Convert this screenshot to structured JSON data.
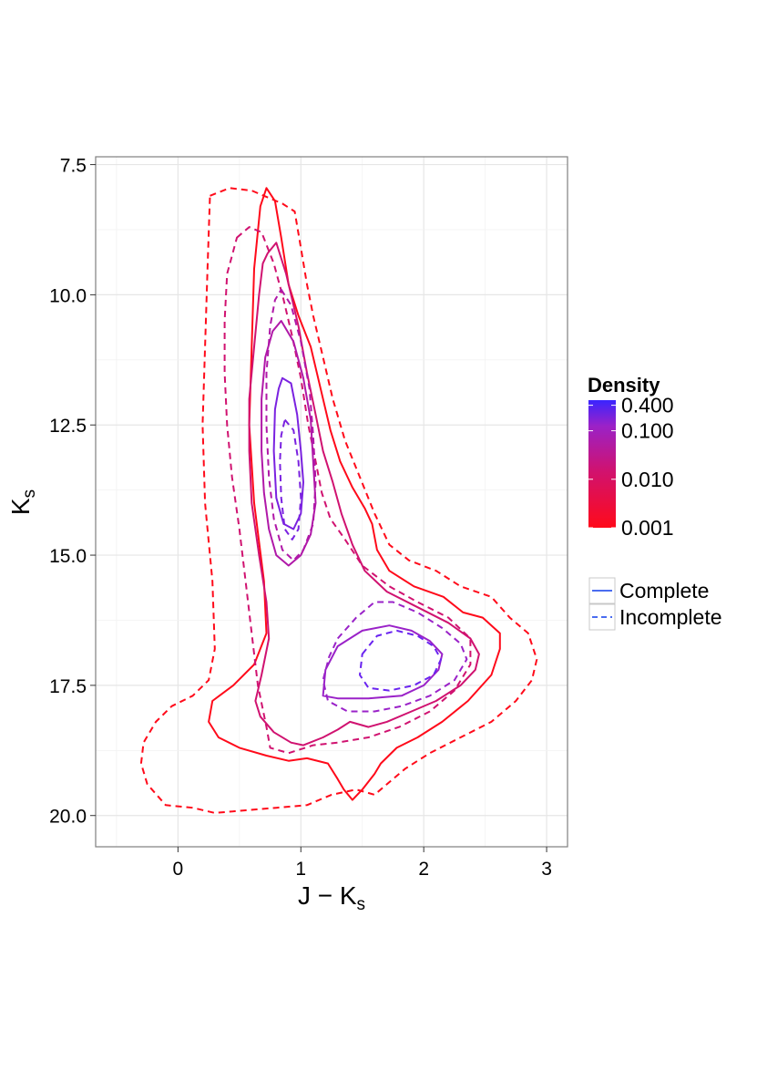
{
  "chart_data": {
    "type": "contour",
    "xlabel": {
      "main": "J − K",
      "sub": "s"
    },
    "ylabel": {
      "main": "K",
      "sub": "s"
    },
    "xlim": [
      -0.67,
      3.17
    ],
    "ylim": [
      20.6,
      7.35
    ],
    "y_reversed": true,
    "grid": true,
    "x_ticks": [
      0,
      1,
      2,
      3
    ],
    "x_tick_labels": [
      "0",
      "1",
      "2",
      "3"
    ],
    "y_ticks": [
      7.5,
      10.0,
      12.5,
      15.0,
      17.5,
      20.0
    ],
    "y_tick_labels": [
      "7.5",
      "10.0",
      "12.5",
      "15.0",
      "17.5",
      "20.0"
    ],
    "colors": {
      "low": "#ff0a1a",
      "mid": "#d01270",
      "high": "#9a22c8",
      "top": "#3a24ff",
      "legend_line": "#4a6cf0"
    },
    "density_legend": {
      "title": "Density",
      "ticks": [
        {
          "label": "0.400",
          "position": 0.96
        },
        {
          "label": "0.100",
          "position": 0.76
        },
        {
          "label": "0.010",
          "position": 0.38
        },
        {
          "label": "0.001",
          "position": 0.0
        }
      ]
    },
    "linetype_legend": {
      "items": [
        {
          "label": "Complete",
          "dash": "solid"
        },
        {
          "label": "Incomplete",
          "dash": "dashed"
        }
      ]
    },
    "series": [
      {
        "sample": "Complete",
        "level": 0.001,
        "color": "#ff0a1a",
        "dash": "solid",
        "points": [
          [
            0.72,
            7.95
          ],
          [
            0.79,
            8.2
          ],
          [
            0.84,
            8.9
          ],
          [
            0.9,
            9.8
          ],
          [
            0.98,
            10.4
          ],
          [
            1.08,
            11.0
          ],
          [
            1.16,
            11.8
          ],
          [
            1.24,
            12.6
          ],
          [
            1.32,
            13.2
          ],
          [
            1.42,
            13.7
          ],
          [
            1.52,
            14.1
          ],
          [
            1.58,
            14.4
          ],
          [
            1.62,
            14.9
          ],
          [
            1.72,
            15.3
          ],
          [
            1.92,
            15.6
          ],
          [
            2.16,
            15.8
          ],
          [
            2.32,
            16.1
          ],
          [
            2.48,
            16.2
          ],
          [
            2.62,
            16.5
          ],
          [
            2.62,
            16.8
          ],
          [
            2.55,
            17.3
          ],
          [
            2.36,
            17.8
          ],
          [
            2.15,
            18.2
          ],
          [
            1.95,
            18.5
          ],
          [
            1.78,
            18.7
          ],
          [
            1.65,
            19.0
          ],
          [
            1.6,
            19.2
          ],
          [
            1.5,
            19.5
          ],
          [
            1.42,
            19.7
          ],
          [
            1.35,
            19.5
          ],
          [
            1.3,
            19.3
          ],
          [
            1.22,
            19.0
          ],
          [
            1.05,
            18.9
          ],
          [
            0.9,
            18.95
          ],
          [
            0.72,
            18.85
          ],
          [
            0.5,
            18.7
          ],
          [
            0.33,
            18.5
          ],
          [
            0.25,
            18.2
          ],
          [
            0.28,
            17.8
          ],
          [
            0.45,
            17.5
          ],
          [
            0.62,
            17.1
          ],
          [
            0.72,
            16.5
          ],
          [
            0.7,
            15.5
          ],
          [
            0.62,
            14.0
          ],
          [
            0.58,
            12.5
          ],
          [
            0.6,
            11.0
          ],
          [
            0.62,
            9.5
          ],
          [
            0.67,
            8.3
          ]
        ]
      },
      {
        "sample": "Incomplete",
        "level": 0.001,
        "color": "#ff0a1a",
        "dash": "dashed",
        "points": [
          [
            0.26,
            8.1
          ],
          [
            0.42,
            7.95
          ],
          [
            0.6,
            8.0
          ],
          [
            0.85,
            8.25
          ],
          [
            0.95,
            8.4
          ],
          [
            1.0,
            9.1
          ],
          [
            1.05,
            9.8
          ],
          [
            1.1,
            10.4
          ],
          [
            1.18,
            11.2
          ],
          [
            1.26,
            12.0
          ],
          [
            1.36,
            12.8
          ],
          [
            1.48,
            13.5
          ],
          [
            1.6,
            14.2
          ],
          [
            1.72,
            14.8
          ],
          [
            1.88,
            15.1
          ],
          [
            2.1,
            15.3
          ],
          [
            2.3,
            15.6
          ],
          [
            2.55,
            15.8
          ],
          [
            2.7,
            16.2
          ],
          [
            2.85,
            16.5
          ],
          [
            2.92,
            17.0
          ],
          [
            2.88,
            17.4
          ],
          [
            2.75,
            17.8
          ],
          [
            2.55,
            18.2
          ],
          [
            2.3,
            18.5
          ],
          [
            2.05,
            18.8
          ],
          [
            1.85,
            19.1
          ],
          [
            1.7,
            19.4
          ],
          [
            1.6,
            19.6
          ],
          [
            1.45,
            19.5
          ],
          [
            1.25,
            19.6
          ],
          [
            1.05,
            19.8
          ],
          [
            0.8,
            19.85
          ],
          [
            0.55,
            19.9
          ],
          [
            0.3,
            19.95
          ],
          [
            0.12,
            19.85
          ],
          [
            -0.1,
            19.8
          ],
          [
            -0.25,
            19.4
          ],
          [
            -0.3,
            19.0
          ],
          [
            -0.28,
            18.6
          ],
          [
            -0.18,
            18.2
          ],
          [
            -0.05,
            17.9
          ],
          [
            0.12,
            17.7
          ],
          [
            0.25,
            17.4
          ],
          [
            0.3,
            16.8
          ],
          [
            0.28,
            15.5
          ],
          [
            0.22,
            14.0
          ],
          [
            0.2,
            12.5
          ],
          [
            0.22,
            11.0
          ],
          [
            0.24,
            9.5
          ]
        ]
      },
      {
        "sample": "Complete",
        "level": 0.01,
        "color": "#d01270",
        "dash": "solid",
        "points": [
          [
            0.73,
            9.2
          ],
          [
            0.8,
            9.0
          ],
          [
            0.88,
            9.6
          ],
          [
            0.98,
            10.6
          ],
          [
            1.05,
            11.5
          ],
          [
            1.12,
            12.3
          ],
          [
            1.18,
            13.0
          ],
          [
            1.26,
            13.6
          ],
          [
            1.33,
            14.2
          ],
          [
            1.42,
            14.8
          ],
          [
            1.52,
            15.3
          ],
          [
            1.7,
            15.7
          ],
          [
            1.95,
            16.0
          ],
          [
            2.2,
            16.3
          ],
          [
            2.38,
            16.6
          ],
          [
            2.45,
            16.9
          ],
          [
            2.42,
            17.2
          ],
          [
            2.3,
            17.5
          ],
          [
            2.1,
            17.8
          ],
          [
            1.9,
            18.0
          ],
          [
            1.7,
            18.2
          ],
          [
            1.55,
            18.3
          ],
          [
            1.4,
            18.2
          ],
          [
            1.3,
            18.35
          ],
          [
            1.18,
            18.5
          ],
          [
            1.02,
            18.65
          ],
          [
            0.92,
            18.6
          ],
          [
            0.78,
            18.4
          ],
          [
            0.67,
            18.1
          ],
          [
            0.63,
            17.8
          ],
          [
            0.68,
            17.3
          ],
          [
            0.74,
            16.6
          ],
          [
            0.72,
            15.9
          ],
          [
            0.66,
            15.0
          ],
          [
            0.6,
            14.0
          ],
          [
            0.58,
            13.0
          ],
          [
            0.58,
            12.0
          ],
          [
            0.62,
            11.0
          ],
          [
            0.66,
            10.0
          ],
          [
            0.69,
            9.4
          ]
        ]
      },
      {
        "sample": "Incomplete",
        "level": 0.01,
        "color": "#d01270",
        "dash": "dashed",
        "points": [
          [
            0.48,
            8.9
          ],
          [
            0.58,
            8.7
          ],
          [
            0.68,
            8.8
          ],
          [
            0.78,
            9.4
          ],
          [
            0.86,
            10.1
          ],
          [
            0.93,
            10.8
          ],
          [
            1.0,
            11.6
          ],
          [
            1.06,
            12.5
          ],
          [
            1.12,
            13.2
          ],
          [
            1.17,
            13.8
          ],
          [
            1.24,
            14.3
          ],
          [
            1.36,
            14.7
          ],
          [
            1.5,
            15.2
          ],
          [
            1.72,
            15.6
          ],
          [
            1.95,
            15.9
          ],
          [
            2.2,
            16.2
          ],
          [
            2.38,
            16.6
          ],
          [
            2.38,
            17.1
          ],
          [
            2.25,
            17.6
          ],
          [
            2.05,
            18.0
          ],
          [
            1.8,
            18.3
          ],
          [
            1.55,
            18.5
          ],
          [
            1.3,
            18.6
          ],
          [
            1.1,
            18.65
          ],
          [
            0.9,
            18.8
          ],
          [
            0.75,
            18.7
          ],
          [
            0.72,
            18.3
          ],
          [
            0.65,
            17.5
          ],
          [
            0.6,
            16.5
          ],
          [
            0.55,
            15.5
          ],
          [
            0.5,
            14.5
          ],
          [
            0.44,
            13.5
          ],
          [
            0.4,
            12.5
          ],
          [
            0.38,
            11.5
          ],
          [
            0.38,
            10.5
          ],
          [
            0.4,
            9.6
          ]
        ]
      },
      {
        "sample": "Complete",
        "level": 0.1,
        "color": "#b018a8",
        "dash": "solid",
        "points": [
          [
            0.84,
            10.5
          ],
          [
            0.94,
            10.9
          ],
          [
            1.02,
            11.6
          ],
          [
            1.08,
            12.4
          ],
          [
            1.1,
            13.2
          ],
          [
            1.12,
            14.0
          ],
          [
            1.08,
            14.6
          ],
          [
            1.0,
            15.0
          ],
          [
            0.9,
            15.2
          ],
          [
            0.8,
            15.0
          ],
          [
            0.74,
            14.5
          ],
          [
            0.7,
            13.8
          ],
          [
            0.68,
            13.0
          ],
          [
            0.68,
            12.0
          ],
          [
            0.71,
            11.2
          ],
          [
            0.77,
            10.7
          ]
        ]
      },
      {
        "sample": "Incomplete",
        "level": 0.1,
        "color": "#b018a8",
        "dash": "dashed",
        "points": [
          [
            0.84,
            9.9
          ],
          [
            0.92,
            10.2
          ],
          [
            1.0,
            10.9
          ],
          [
            1.07,
            11.8
          ],
          [
            1.1,
            12.7
          ],
          [
            1.12,
            13.6
          ],
          [
            1.1,
            14.4
          ],
          [
            1.02,
            14.9
          ],
          [
            0.94,
            15.1
          ],
          [
            0.85,
            14.9
          ],
          [
            0.78,
            14.3
          ],
          [
            0.74,
            13.5
          ],
          [
            0.72,
            12.5
          ],
          [
            0.72,
            11.5
          ],
          [
            0.75,
            10.6
          ],
          [
            0.79,
            10.1
          ]
        ]
      },
      {
        "sample": "Complete",
        "level": 0.1,
        "color": "#9a22c8",
        "dash": "solid",
        "points": [
          [
            1.18,
            17.7
          ],
          [
            1.2,
            17.2
          ],
          [
            1.3,
            16.75
          ],
          [
            1.5,
            16.45
          ],
          [
            1.72,
            16.35
          ],
          [
            1.9,
            16.45
          ],
          [
            2.05,
            16.65
          ],
          [
            2.15,
            16.9
          ],
          [
            2.12,
            17.2
          ],
          [
            2.0,
            17.5
          ],
          [
            1.82,
            17.7
          ],
          [
            1.55,
            17.75
          ],
          [
            1.3,
            17.75
          ]
        ]
      },
      {
        "sample": "Incomplete",
        "level": 0.1,
        "color": "#9a22c8",
        "dash": "dashed",
        "points": [
          [
            1.3,
            16.6
          ],
          [
            1.45,
            16.2
          ],
          [
            1.6,
            15.9
          ],
          [
            1.75,
            15.9
          ],
          [
            1.95,
            16.1
          ],
          [
            2.15,
            16.4
          ],
          [
            2.3,
            16.7
          ],
          [
            2.35,
            17.0
          ],
          [
            2.25,
            17.4
          ],
          [
            2.05,
            17.7
          ],
          [
            1.82,
            17.9
          ],
          [
            1.6,
            18.0
          ],
          [
            1.38,
            18.0
          ],
          [
            1.22,
            17.8
          ],
          [
            1.18,
            17.4
          ],
          [
            1.23,
            16.95
          ]
        ]
      },
      {
        "sample": "Complete",
        "level": 0.4,
        "color": "#7a22e0",
        "dash": "solid",
        "points": [
          [
            0.85,
            11.6
          ],
          [
            0.92,
            11.7
          ],
          [
            0.97,
            12.3
          ],
          [
            1.0,
            13.0
          ],
          [
            1.02,
            13.6
          ],
          [
            1.0,
            14.2
          ],
          [
            0.94,
            14.5
          ],
          [
            0.86,
            14.4
          ],
          [
            0.8,
            13.9
          ],
          [
            0.78,
            13.0
          ],
          [
            0.79,
            12.2
          ],
          [
            0.82,
            11.8
          ]
        ]
      },
      {
        "sample": "Incomplete",
        "level": 0.4,
        "color": "#7a22e0",
        "dash": "dashed",
        "points": [
          [
            0.87,
            12.4
          ],
          [
            0.94,
            12.6
          ],
          [
            0.98,
            13.2
          ],
          [
            1.0,
            13.9
          ],
          [
            0.98,
            14.5
          ],
          [
            0.93,
            14.7
          ],
          [
            0.87,
            14.5
          ],
          [
            0.84,
            13.9
          ],
          [
            0.83,
            13.2
          ],
          [
            0.84,
            12.7
          ]
        ]
      },
      {
        "sample": "Incomplete",
        "level": 0.4,
        "color": "#6a24f0",
        "dash": "dashed",
        "points": [
          [
            1.5,
            16.9
          ],
          [
            1.62,
            16.55
          ],
          [
            1.78,
            16.45
          ],
          [
            1.95,
            16.55
          ],
          [
            2.08,
            16.75
          ],
          [
            2.14,
            17.0
          ],
          [
            2.08,
            17.3
          ],
          [
            1.92,
            17.5
          ],
          [
            1.72,
            17.6
          ],
          [
            1.55,
            17.55
          ],
          [
            1.48,
            17.3
          ]
        ]
      }
    ]
  }
}
